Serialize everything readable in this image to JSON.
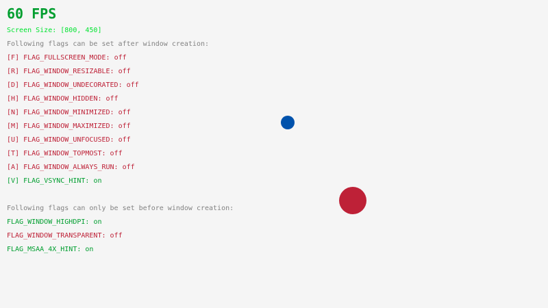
{
  "fps": {
    "text": "60 FPS",
    "color": "#009e2f"
  },
  "screen_size": {
    "text": "Screen Size: [800, 450]",
    "color": "#00e430"
  },
  "after_header": "Following flags can be set after window creation:",
  "before_header": "Following flags can only be set before window creation:",
  "colors": {
    "on": "#009e2f",
    "off": "#be2137",
    "header": "#828282",
    "background": "#f5f5f5"
  },
  "after_flags": [
    {
      "key": "[F]",
      "name": "FLAG_FULLSCREEN_MODE",
      "state": "off"
    },
    {
      "key": "[R]",
      "name": "FLAG_WINDOW_RESIZABLE",
      "state": "off"
    },
    {
      "key": "[D]",
      "name": "FLAG_WINDOW_UNDECORATED",
      "state": "off"
    },
    {
      "key": "[H]",
      "name": "FLAG_WINDOW_HIDDEN",
      "state": "off"
    },
    {
      "key": "[N]",
      "name": "FLAG_WINDOW_MINIMIZED",
      "state": "off"
    },
    {
      "key": "[M]",
      "name": "FLAG_WINDOW_MAXIMIZED",
      "state": "off"
    },
    {
      "key": "[U]",
      "name": "FLAG_WINDOW_UNFOCUSED",
      "state": "off"
    },
    {
      "key": "[T]",
      "name": "FLAG_WINDOW_TOPMOST",
      "state": "off"
    },
    {
      "key": "[A]",
      "name": "FLAG_WINDOW_ALWAYS_RUN",
      "state": "off"
    },
    {
      "key": "[V]",
      "name": "FLAG_VSYNC_HINT",
      "state": "on"
    }
  ],
  "before_flags": [
    {
      "name": "FLAG_WINDOW_HIGHDPI",
      "state": "on"
    },
    {
      "name": "FLAG_WINDOW_TRANSPARENT",
      "state": "off"
    },
    {
      "name": "FLAG_MSAA_4X_HINT",
      "state": "on"
    }
  ],
  "balls": [
    {
      "color": "#0052ac"
    },
    {
      "color": "#be2137"
    }
  ]
}
